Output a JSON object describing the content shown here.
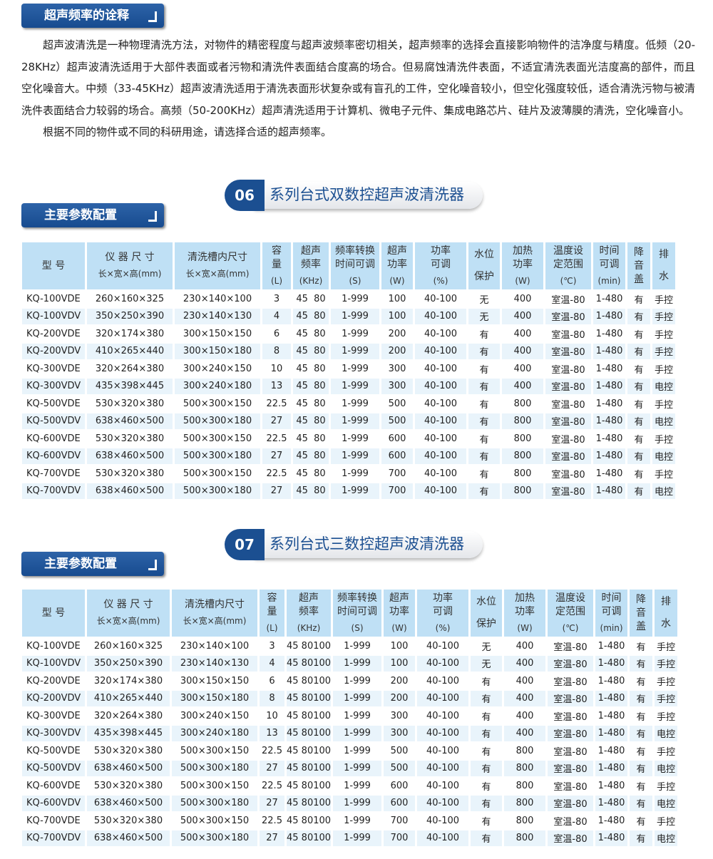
{
  "intro": {
    "badge": "超声频率的诠释",
    "paragraph1": "超声波清洗是一种物理清洗方法，对物件的精密程度与超声波频率密切相关，超声频率的选择会直接影响物件的洁净度与精度。低频（20-28KHz）超声波清洗适用于大部件表面或者污物和清洗件表面结合度高的场合。但易腐蚀清洗件表面，不适宜清洗表面光洁度高的部件，而且空化噪音大。中频（33-45KHz）超声波清洗适用于清洗表面形状复杂或有盲孔的工件，空化噪音较小，但空化强度较低，适合清洗污物与被清洗件表面结合力较弱的场合。高频（50-200KHz）超声清洗适用于计算机、微电子元件、集成电路芯片、硅片及波薄膜的清洗，空化噪音小。",
    "paragraph2": "根据不同的物件或不同的科研用途，请选择合适的超声频率。"
  },
  "headers": [
    {
      "main": "型 号",
      "sub": ""
    },
    {
      "main": "仪 器 尺 寸",
      "sub": "长×宽×高(mm)"
    },
    {
      "main": "清洗槽内尺寸",
      "sub": "长×宽×高(mm)"
    },
    {
      "main": "容\n量",
      "sub": "(L)"
    },
    {
      "main": "超声\n频率",
      "sub": "(KHz)"
    },
    {
      "main": "频率转换\n时间可调",
      "sub": "(S)"
    },
    {
      "main": "超声\n功率",
      "sub": "(W)"
    },
    {
      "main": "功率\n可调",
      "sub": "(%)"
    },
    {
      "main": "水位",
      "sub": "保护"
    },
    {
      "main": "加热\n功率",
      "sub": "(W)"
    },
    {
      "main": "温度设\n定范围",
      "sub": "(℃)"
    },
    {
      "main": "时间\n可调",
      "sub": "(min)"
    },
    {
      "main": "降\n音\n盖",
      "sub": ""
    },
    {
      "main": "排",
      "sub": "水"
    }
  ],
  "sections": [
    {
      "number": "06",
      "title": "系列台式双数控超声波清洗器",
      "badge": "主要参数配置",
      "rows": [
        [
          "KQ-100VDE",
          "260×160×325",
          "230×140×100",
          "3",
          "45  80",
          "1-999",
          "100",
          "40-100",
          "无",
          "400",
          "室温-80",
          "1-480",
          "有",
          "手控"
        ],
        [
          "KQ-100VDV",
          "350×250×390",
          "230×140×130",
          "4",
          "45  80",
          "1-999",
          "100",
          "40-100",
          "无",
          "400",
          "室温-80",
          "1-480",
          "有",
          "手控"
        ],
        [
          "KQ-200VDE",
          "320×174×380",
          "300×150×150",
          "6",
          "45  80",
          "1-999",
          "200",
          "40-100",
          "有",
          "400",
          "室温-80",
          "1-480",
          "有",
          "手控"
        ],
        [
          "KQ-200VDV",
          "410×265×440",
          "300×150×180",
          "8",
          "45  80",
          "1-999",
          "200",
          "40-100",
          "有",
          "400",
          "室温-80",
          "1-480",
          "有",
          "手控"
        ],
        [
          "KQ-300VDE",
          "320×264×380",
          "300×240×150",
          "10",
          "45  80",
          "1-999",
          "300",
          "40-100",
          "有",
          "400",
          "室温-80",
          "1-480",
          "有",
          "手控"
        ],
        [
          "KQ-300VDV",
          "435×398×445",
          "300×240×180",
          "13",
          "45  80",
          "1-999",
          "300",
          "40-100",
          "有",
          "400",
          "室温-80",
          "1-480",
          "有",
          "电控"
        ],
        [
          "KQ-500VDE",
          "530×320×380",
          "500×300×150",
          "22.5",
          "45  80",
          "1-999",
          "500",
          "40-100",
          "有",
          "800",
          "室温-80",
          "1-480",
          "有",
          "手控"
        ],
        [
          "KQ-500VDV",
          "638×460×500",
          "500×300×180",
          "27",
          "45  80",
          "1-999",
          "500",
          "40-100",
          "有",
          "800",
          "室温-80",
          "1-480",
          "有",
          "电控"
        ],
        [
          "KQ-600VDE",
          "530×320×380",
          "500×300×150",
          "22.5",
          "45  80",
          "1-999",
          "600",
          "40-100",
          "有",
          "800",
          "室温-80",
          "1-480",
          "有",
          "手控"
        ],
        [
          "KQ-600VDV",
          "638×460×500",
          "500×300×180",
          "27",
          "45  80",
          "1-999",
          "600",
          "40-100",
          "有",
          "800",
          "室温-80",
          "1-480",
          "有",
          "电控"
        ],
        [
          "KQ-700VDE",
          "530×320×380",
          "500×300×150",
          "22.5",
          "45  80",
          "1-999",
          "700",
          "40-100",
          "有",
          "800",
          "室温-80",
          "1-480",
          "有",
          "手控"
        ],
        [
          "KQ-700VDV",
          "638×460×500",
          "500×300×180",
          "27",
          "45  80",
          "1-999",
          "700",
          "40-100",
          "有",
          "800",
          "室温-80",
          "1-480",
          "有",
          "电控"
        ]
      ]
    },
    {
      "number": "07",
      "title": "系列台式三数控超声波清洗器",
      "badge": "主要参数配置",
      "rows": [
        [
          "KQ-100VDE",
          "260×160×325",
          "230×140×100",
          "3",
          "45 80100",
          "1-999",
          "100",
          "40-100",
          "无",
          "400",
          "室温-80",
          "1-480",
          "有",
          "手控"
        ],
        [
          "KQ-100VDV",
          "350×250×390",
          "230×140×130",
          "4",
          "45 80100",
          "1-999",
          "100",
          "40-100",
          "无",
          "400",
          "室温-80",
          "1-480",
          "有",
          "手控"
        ],
        [
          "KQ-200VDE",
          "320×174×380",
          "300×150×150",
          "6",
          "45 80100",
          "1-999",
          "200",
          "40-100",
          "有",
          "400",
          "室温-80",
          "1-480",
          "有",
          "手控"
        ],
        [
          "KQ-200VDV",
          "410×265×440",
          "300×150×180",
          "8",
          "45 80100",
          "1-999",
          "200",
          "40-100",
          "有",
          "400",
          "室温-80",
          "1-480",
          "有",
          "手控"
        ],
        [
          "KQ-300VDE",
          "320×264×380",
          "300×240×150",
          "10",
          "45 80100",
          "1-999",
          "300",
          "40-100",
          "有",
          "400",
          "室温-80",
          "1-480",
          "有",
          "手控"
        ],
        [
          "KQ-300VDV",
          "435×398×445",
          "300×240×180",
          "13",
          "45 80100",
          "1-999",
          "300",
          "40-100",
          "有",
          "400",
          "室温-80",
          "1-480",
          "有",
          "电控"
        ],
        [
          "KQ-500VDE",
          "530×320×380",
          "500×300×150",
          "22.5",
          "45 80100",
          "1-999",
          "500",
          "40-100",
          "有",
          "800",
          "室温-80",
          "1-480",
          "有",
          "手控"
        ],
        [
          "KQ-500VDV",
          "638×460×500",
          "500×300×180",
          "27",
          "45 80100",
          "1-999",
          "500",
          "40-100",
          "有",
          "800",
          "室温-80",
          "1-480",
          "有",
          "电控"
        ],
        [
          "KQ-600VDE",
          "530×320×380",
          "500×300×150",
          "22.5",
          "45 80100",
          "1-999",
          "600",
          "40-100",
          "有",
          "800",
          "室温-80",
          "1-480",
          "有",
          "手控"
        ],
        [
          "KQ-600VDV",
          "638×460×500",
          "500×300×180",
          "27",
          "45 80100",
          "1-999",
          "600",
          "40-100",
          "有",
          "800",
          "室温-80",
          "1-480",
          "有",
          "电控"
        ],
        [
          "KQ-700VDE",
          "530×320×380",
          "500×300×150",
          "22.5",
          "45 80100",
          "1-999",
          "700",
          "40-100",
          "有",
          "800",
          "室温-80",
          "1-480",
          "有",
          "手控"
        ],
        [
          "KQ-700VDV",
          "638×460×500",
          "500×300×180",
          "27",
          "45 80100",
          "1-999",
          "700",
          "40-100",
          "有",
          "800",
          "室温-80",
          "1-480",
          "有",
          "电控"
        ]
      ]
    }
  ],
  "colors": {
    "brand_blue": "#1b4f91",
    "header_bg": "#bfe0f5",
    "row_alt": "#e9f4fb"
  }
}
